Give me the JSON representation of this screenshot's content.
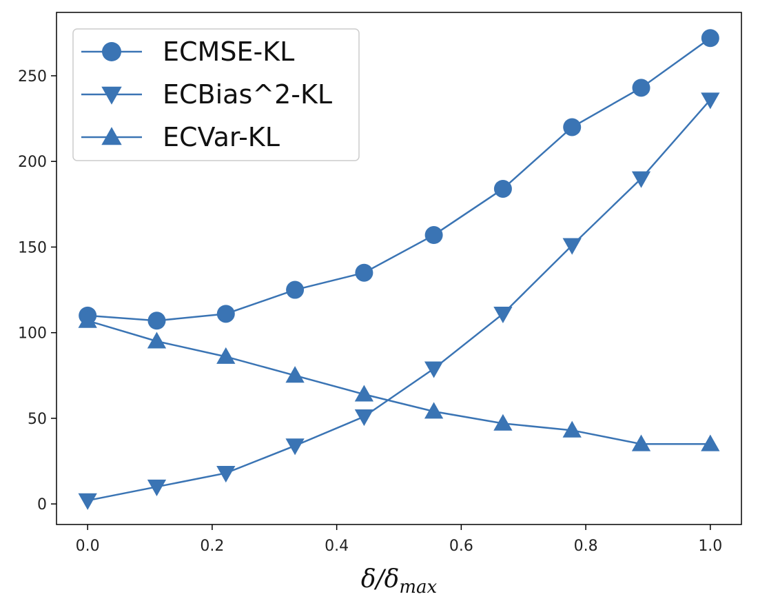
{
  "chart_data": {
    "type": "line",
    "title": "",
    "xlabel": "δ/δ",
    "xlabel_sub": "max",
    "ylabel": "",
    "xlim": [
      -0.05,
      1.05
    ],
    "ylim": [
      -12,
      287
    ],
    "xticks": [
      0.0,
      0.2,
      0.4,
      0.6,
      0.8,
      1.0
    ],
    "xtick_labels": [
      "0.0",
      "0.2",
      "0.4",
      "0.6",
      "0.8",
      "1.0"
    ],
    "yticks": [
      0,
      50,
      100,
      150,
      200,
      250
    ],
    "ytick_labels": [
      "0",
      "50",
      "100",
      "150",
      "200",
      "250"
    ],
    "grid": false,
    "legend_position": "upper-left",
    "color": "#3a74b4",
    "x": [
      0.0,
      0.111,
      0.222,
      0.333,
      0.444,
      0.556,
      0.667,
      0.778,
      0.889,
      1.0
    ],
    "series": [
      {
        "name": "ECMSE-KL",
        "marker": "circle",
        "values": [
          110,
          107,
          111,
          125,
          135,
          157,
          184,
          220,
          243,
          272
        ]
      },
      {
        "name": "ECBias^2-KL",
        "marker": "triangle-down",
        "values": [
          2,
          10,
          18,
          34,
          51,
          79,
          111,
          151,
          190,
          236
        ]
      },
      {
        "name": "ECVar-KL",
        "marker": "triangle-up",
        "values": [
          107,
          95,
          86,
          75,
          64,
          54,
          47,
          43,
          35,
          35
        ]
      }
    ]
  }
}
